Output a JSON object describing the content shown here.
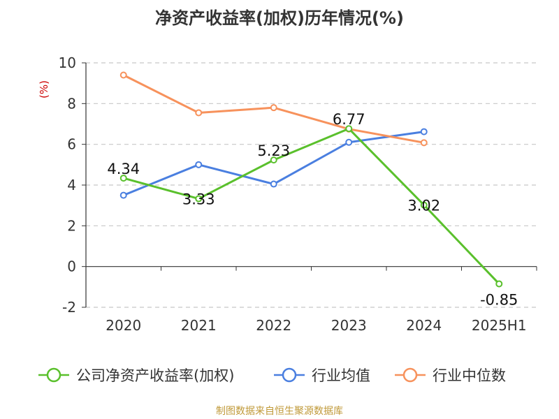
{
  "chart_data": {
    "type": "line",
    "title": "净资产收益率(加权)历年情况(%)",
    "ylabel": "(%)",
    "categories": [
      "2020",
      "2021",
      "2022",
      "2023",
      "2024",
      "2025H1"
    ],
    "ylim": [
      -2,
      10
    ],
    "yticks": [
      "-2",
      "0",
      "2",
      "4",
      "6",
      "8",
      "10"
    ],
    "grid": true,
    "legend_position": "bottom",
    "series": [
      {
        "name": "公司净资产收益率(加权)",
        "color": "#5ac02c",
        "values": [
          4.34,
          3.33,
          5.23,
          6.77,
          3.02,
          -0.85
        ],
        "labels": [
          "4.34",
          "3.33",
          "5.23",
          "6.77",
          "3.02",
          "-0.85"
        ]
      },
      {
        "name": "行业均值",
        "color": "#4a7fe0",
        "values": [
          3.5,
          5.0,
          4.05,
          6.1,
          6.62,
          null
        ]
      },
      {
        "name": "行业中位数",
        "color": "#f7925c",
        "values": [
          9.4,
          7.55,
          7.8,
          6.75,
          6.08,
          null
        ]
      }
    ]
  },
  "source": "制图数据来自恒生聚源数据库"
}
